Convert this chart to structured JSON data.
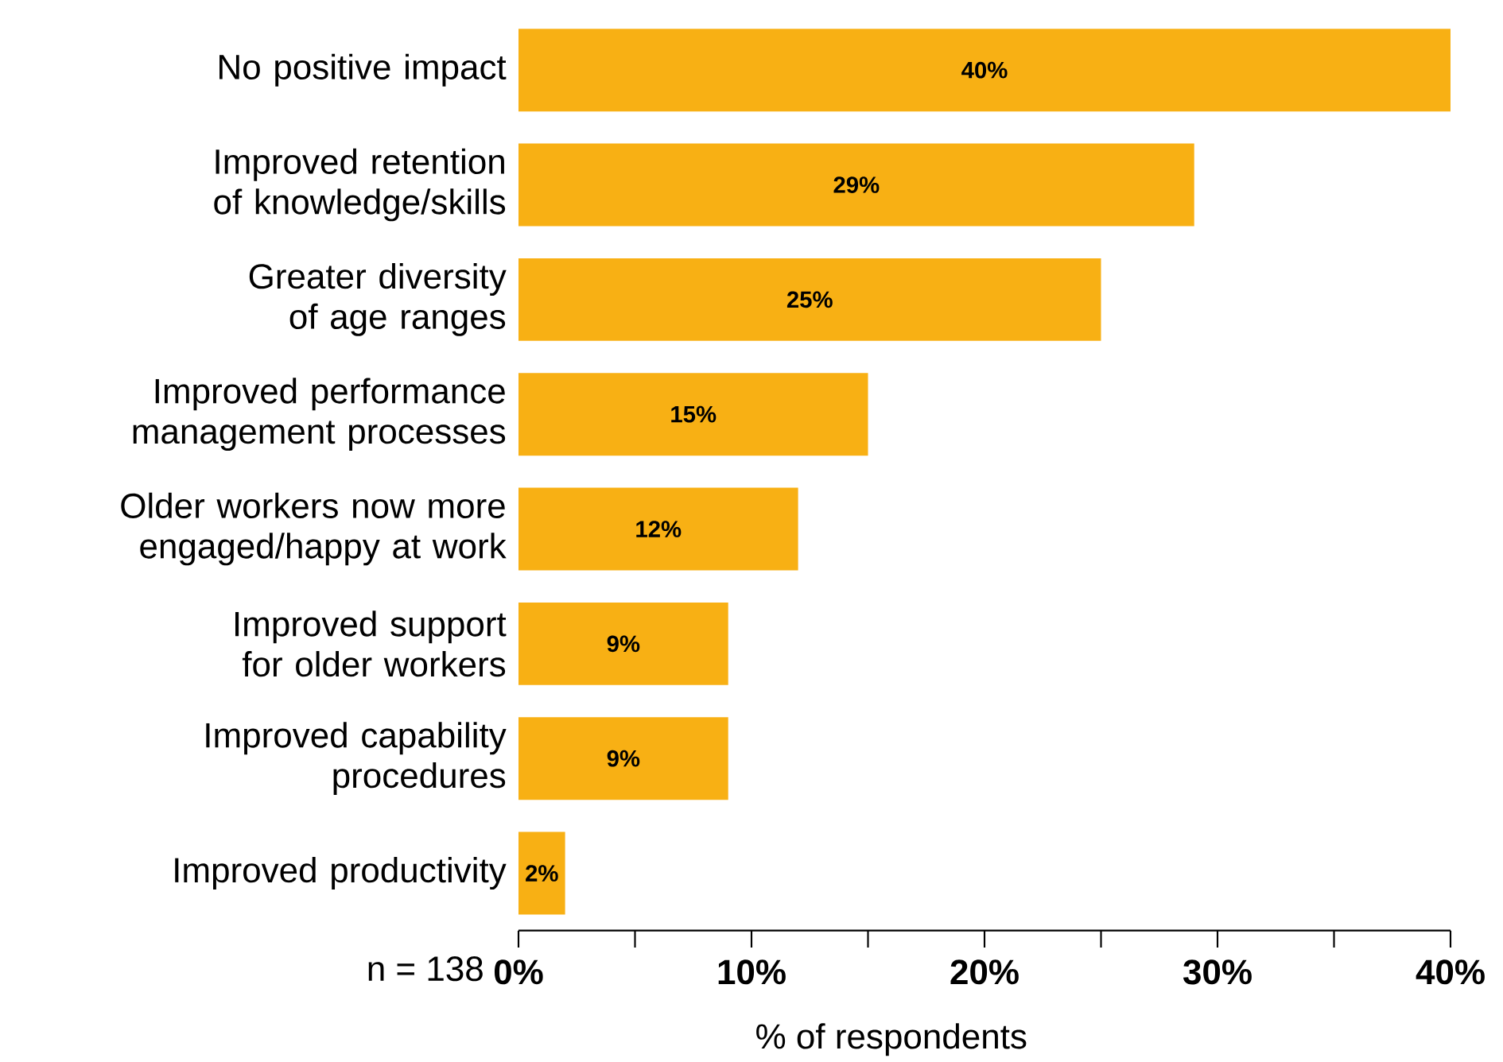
{
  "chart_data": {
    "type": "bar",
    "orientation": "horizontal",
    "categories": [
      "No positive impact",
      "Improved retention of knowledge/skills",
      "Greater diversity of age ranges",
      "Improved performance management processes",
      "Older workers now more engaged/happy at work",
      "Improved support for older workers",
      "Improved capability procedures",
      "Improved productivity"
    ],
    "values": [
      40,
      29,
      25,
      15,
      12,
      9,
      9,
      2
    ],
    "value_labels": [
      "40%",
      "29%",
      "25%",
      "15%",
      "12%",
      "9%",
      "9%",
      "2%"
    ],
    "color": "#f8b014",
    "xlim": [
      0,
      40
    ],
    "xticks": [
      {
        "value": 0,
        "label": "0%"
      },
      {
        "value": 5,
        "label": null
      },
      {
        "value": 10,
        "label": "10%"
      },
      {
        "value": 15,
        "label": null
      },
      {
        "value": 20,
        "label": "20%"
      },
      {
        "value": 25,
        "label": null
      },
      {
        "value": 30,
        "label": "30%"
      },
      {
        "value": 35,
        "label": null
      },
      {
        "value": 40,
        "label": "40%"
      }
    ],
    "xlabel": "% of respondents",
    "annotations": [
      "n = 138"
    ]
  }
}
